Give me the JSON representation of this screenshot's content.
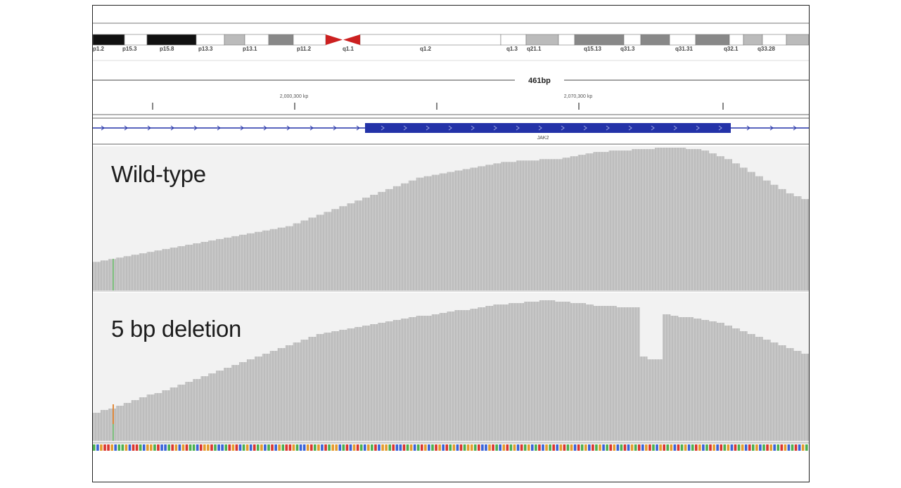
{
  "colors": {
    "coverage_bar": "#bdbdbd",
    "coverage_bar_edge": "#9a9a9a",
    "track_bg": "#f2f2f2",
    "gene_blue": "#2332a8",
    "centromere_red": "#cc2020"
  },
  "ideogram": {
    "band_labels": [
      "p1.2",
      "p15.3",
      "p15.8",
      "p13.3",
      "p13.1",
      "p11.2",
      "q1.1",
      "q1.2",
      "q1.3",
      "q21.1",
      "q15.13",
      "q31.3",
      "q31.31",
      "q32.1",
      "q33.28"
    ]
  },
  "ruler": {
    "span_label": "461bp",
    "tick_labels": [
      "2,000,300 kp",
      "2,070,300 kp"
    ]
  },
  "gene_track": {
    "gene_name": "JAK2"
  },
  "tracks": [
    {
      "label": "Wild-type",
      "coverage": [
        0.2,
        0.21,
        0.22,
        0.23,
        0.24,
        0.25,
        0.26,
        0.27,
        0.28,
        0.29,
        0.3,
        0.31,
        0.32,
        0.33,
        0.34,
        0.35,
        0.36,
        0.37,
        0.38,
        0.39,
        0.4,
        0.41,
        0.42,
        0.43,
        0.44,
        0.45,
        0.47,
        0.49,
        0.51,
        0.53,
        0.55,
        0.57,
        0.59,
        0.61,
        0.63,
        0.65,
        0.67,
        0.69,
        0.71,
        0.73,
        0.75,
        0.77,
        0.79,
        0.8,
        0.81,
        0.82,
        0.83,
        0.84,
        0.85,
        0.86,
        0.87,
        0.88,
        0.89,
        0.9,
        0.9,
        0.91,
        0.91,
        0.91,
        0.92,
        0.92,
        0.92,
        0.93,
        0.94,
        0.95,
        0.96,
        0.97,
        0.97,
        0.98,
        0.98,
        0.98,
        0.99,
        0.99,
        0.99,
        1.0,
        1.0,
        1.0,
        1.0,
        0.99,
        0.99,
        0.98,
        0.96,
        0.94,
        0.92,
        0.89,
        0.86,
        0.83,
        0.8,
        0.77,
        0.74,
        0.71,
        0.68,
        0.66,
        0.64
      ]
    },
    {
      "label": "5 bp deletion",
      "coverage": [
        0.2,
        0.22,
        0.23,
        0.25,
        0.27,
        0.29,
        0.31,
        0.33,
        0.34,
        0.36,
        0.38,
        0.4,
        0.42,
        0.44,
        0.46,
        0.48,
        0.5,
        0.52,
        0.54,
        0.56,
        0.58,
        0.6,
        0.62,
        0.64,
        0.66,
        0.68,
        0.7,
        0.72,
        0.74,
        0.76,
        0.77,
        0.78,
        0.79,
        0.8,
        0.81,
        0.82,
        0.83,
        0.84,
        0.85,
        0.86,
        0.87,
        0.88,
        0.89,
        0.89,
        0.9,
        0.91,
        0.92,
        0.93,
        0.93,
        0.94,
        0.95,
        0.96,
        0.97,
        0.97,
        0.98,
        0.98,
        0.99,
        0.99,
        1.0,
        1.0,
        0.99,
        0.99,
        0.98,
        0.98,
        0.97,
        0.96,
        0.96,
        0.96,
        0.95,
        0.95,
        0.95,
        0.6,
        0.58,
        0.58,
        0.9,
        0.89,
        0.88,
        0.88,
        0.87,
        0.86,
        0.85,
        0.84,
        0.82,
        0.8,
        0.78,
        0.76,
        0.74,
        0.72,
        0.7,
        0.68,
        0.66,
        0.64,
        0.62
      ]
    }
  ],
  "sequence_track": {
    "bases": "ACGTTGCAAGCTTACGGATCCATGCGTAACTGGTACCATGTCAGCTAGCATCGATTGACCGTAGCTAGGCATCGTACGATCGGATCCTAGCATGCATGCTAGCTAGGATCCGTACGTAGCTAGCATCGATCGTAGCTAGCTAGCATGCATCGATCGTACGTAGCTAGCATGCATGCTAGCTAGCTAGCATGCATGCATCGA"
  }
}
